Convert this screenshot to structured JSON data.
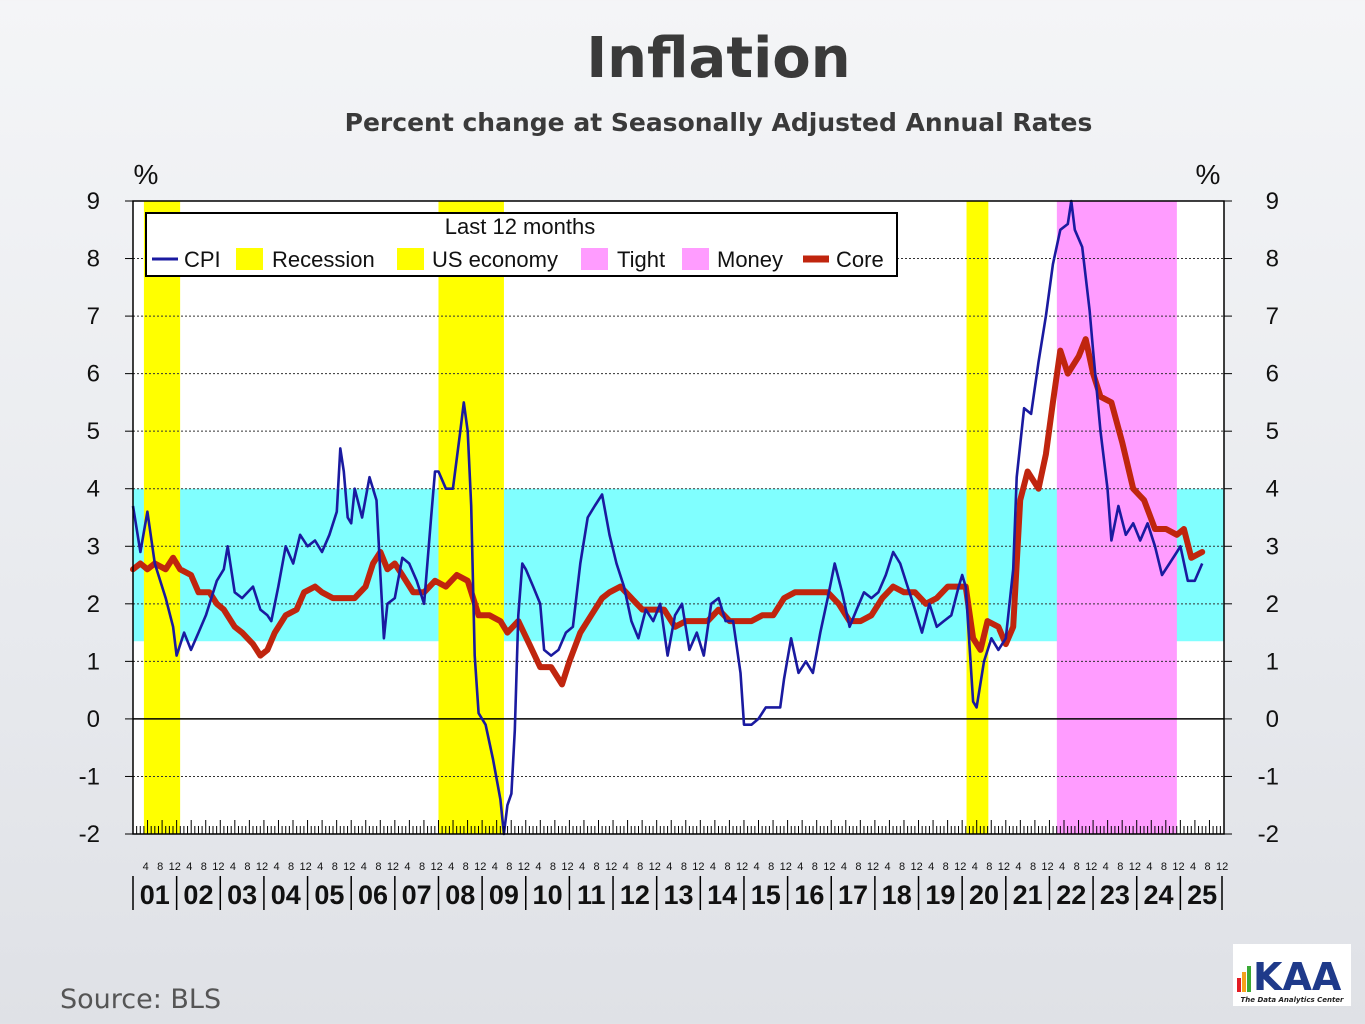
{
  "title": "Inflation",
  "subtitle": "Percent change at Seasonally Adjusted  Annual Rates",
  "source": "Source:  BLS",
  "logo": {
    "text": "KAA",
    "tagline": "The Data Analytics Center"
  },
  "chart_data": {
    "type": "line",
    "y_unit_left": "%",
    "y_unit_right": "%",
    "ylim": [
      -2,
      9
    ],
    "y_ticks": [
      9,
      8,
      7,
      6,
      5,
      4,
      3,
      2,
      1,
      0,
      -1,
      -2
    ],
    "x_range": [
      "2001-01",
      "2025-12"
    ],
    "year_labels": [
      "01",
      "02",
      "03",
      "04",
      "05",
      "06",
      "07",
      "08",
      "09",
      "10",
      "11",
      "12",
      "13",
      "14",
      "15",
      "16",
      "17",
      "18",
      "19",
      "20",
      "21",
      "22",
      "23",
      "24",
      "25"
    ],
    "month_tick_labels": [
      "4",
      "8",
      "12"
    ],
    "grid": "dashed horizontal",
    "legend": {
      "title": "Last 12 months",
      "placement": "top-left",
      "entries": [
        "CPI",
        "Recession",
        "US economy",
        "Tight",
        "Money",
        "Core"
      ]
    },
    "target_band": [
      1.35,
      4.0
    ],
    "recessions": [
      {
        "start": 2001.25,
        "end": 2002.08
      },
      {
        "start": 2008.0,
        "end": 2009.5
      },
      {
        "start": 2020.1,
        "end": 2020.6
      }
    ],
    "tight_money": [
      {
        "start": 2022.17,
        "end": 2024.92
      }
    ],
    "colors": {
      "cpi": "#1a1aa0",
      "core": "#c0250e",
      "recession": "#ffff00",
      "tight_money": "#ff9cff",
      "band": "#80ffff",
      "plot_bg": "#ffffff"
    },
    "series": [
      {
        "name": "CPI",
        "points": [
          [
            2001.0,
            3.7
          ],
          [
            2001.17,
            2.9
          ],
          [
            2001.33,
            3.6
          ],
          [
            2001.5,
            2.7
          ],
          [
            2001.75,
            2.1
          ],
          [
            2001.92,
            1.6
          ],
          [
            2002.0,
            1.1
          ],
          [
            2002.17,
            1.5
          ],
          [
            2002.33,
            1.2
          ],
          [
            2002.5,
            1.5
          ],
          [
            2002.67,
            1.8
          ],
          [
            2002.92,
            2.4
          ],
          [
            2003.08,
            2.6
          ],
          [
            2003.17,
            3.0
          ],
          [
            2003.33,
            2.2
          ],
          [
            2003.5,
            2.1
          ],
          [
            2003.75,
            2.3
          ],
          [
            2003.92,
            1.9
          ],
          [
            2004.08,
            1.8
          ],
          [
            2004.17,
            1.7
          ],
          [
            2004.33,
            2.3
          ],
          [
            2004.5,
            3.0
          ],
          [
            2004.67,
            2.7
          ],
          [
            2004.83,
            3.2
          ],
          [
            2005.0,
            3.0
          ],
          [
            2005.17,
            3.1
          ],
          [
            2005.33,
            2.9
          ],
          [
            2005.5,
            3.2
          ],
          [
            2005.67,
            3.6
          ],
          [
            2005.75,
            4.7
          ],
          [
            2005.83,
            4.3
          ],
          [
            2005.92,
            3.5
          ],
          [
            2006.0,
            3.4
          ],
          [
            2006.08,
            4.0
          ],
          [
            2006.25,
            3.5
          ],
          [
            2006.42,
            4.2
          ],
          [
            2006.58,
            3.8
          ],
          [
            2006.67,
            2.5
          ],
          [
            2006.75,
            1.4
          ],
          [
            2006.83,
            2.0
          ],
          [
            2007.0,
            2.1
          ],
          [
            2007.17,
            2.8
          ],
          [
            2007.33,
            2.7
          ],
          [
            2007.5,
            2.4
          ],
          [
            2007.67,
            2.0
          ],
          [
            2007.83,
            3.5
          ],
          [
            2007.92,
            4.3
          ],
          [
            2008.0,
            4.3
          ],
          [
            2008.17,
            4.0
          ],
          [
            2008.33,
            4.0
          ],
          [
            2008.5,
            5.0
          ],
          [
            2008.58,
            5.5
          ],
          [
            2008.67,
            5.0
          ],
          [
            2008.75,
            3.7
          ],
          [
            2008.83,
            1.1
          ],
          [
            2008.92,
            0.1
          ],
          [
            2009.0,
            0.0
          ],
          [
            2009.08,
            -0.1
          ],
          [
            2009.25,
            -0.7
          ],
          [
            2009.42,
            -1.4
          ],
          [
            2009.5,
            -2.0
          ],
          [
            2009.58,
            -1.5
          ],
          [
            2009.67,
            -1.3
          ],
          [
            2009.75,
            -0.2
          ],
          [
            2009.83,
            1.8
          ],
          [
            2009.92,
            2.7
          ],
          [
            2010.0,
            2.6
          ],
          [
            2010.17,
            2.3
          ],
          [
            2010.33,
            2.0
          ],
          [
            2010.42,
            1.2
          ],
          [
            2010.58,
            1.1
          ],
          [
            2010.75,
            1.2
          ],
          [
            2010.92,
            1.5
          ],
          [
            2011.08,
            1.6
          ],
          [
            2011.25,
            2.7
          ],
          [
            2011.42,
            3.5
          ],
          [
            2011.58,
            3.7
          ],
          [
            2011.75,
            3.9
          ],
          [
            2011.92,
            3.2
          ],
          [
            2012.08,
            2.7
          ],
          [
            2012.25,
            2.3
          ],
          [
            2012.42,
            1.7
          ],
          [
            2012.58,
            1.4
          ],
          [
            2012.75,
            1.9
          ],
          [
            2012.92,
            1.7
          ],
          [
            2013.08,
            2.0
          ],
          [
            2013.25,
            1.1
          ],
          [
            2013.42,
            1.8
          ],
          [
            2013.58,
            2.0
          ],
          [
            2013.75,
            1.2
          ],
          [
            2013.92,
            1.5
          ],
          [
            2014.08,
            1.1
          ],
          [
            2014.25,
            2.0
          ],
          [
            2014.42,
            2.1
          ],
          [
            2014.58,
            1.7
          ],
          [
            2014.75,
            1.7
          ],
          [
            2014.92,
            0.8
          ],
          [
            2015.0,
            -0.1
          ],
          [
            2015.17,
            -0.1
          ],
          [
            2015.33,
            0.0
          ],
          [
            2015.5,
            0.2
          ],
          [
            2015.67,
            0.2
          ],
          [
            2015.83,
            0.2
          ],
          [
            2015.92,
            0.7
          ],
          [
            2016.08,
            1.4
          ],
          [
            2016.25,
            0.8
          ],
          [
            2016.42,
            1.0
          ],
          [
            2016.58,
            0.8
          ],
          [
            2016.75,
            1.5
          ],
          [
            2016.92,
            2.1
          ],
          [
            2017.08,
            2.7
          ],
          [
            2017.25,
            2.2
          ],
          [
            2017.42,
            1.6
          ],
          [
            2017.58,
            1.9
          ],
          [
            2017.75,
            2.2
          ],
          [
            2017.92,
            2.1
          ],
          [
            2018.08,
            2.2
          ],
          [
            2018.25,
            2.5
          ],
          [
            2018.42,
            2.9
          ],
          [
            2018.58,
            2.7
          ],
          [
            2018.75,
            2.3
          ],
          [
            2018.92,
            1.9
          ],
          [
            2019.08,
            1.5
          ],
          [
            2019.25,
            2.0
          ],
          [
            2019.42,
            1.6
          ],
          [
            2019.58,
            1.7
          ],
          [
            2019.75,
            1.8
          ],
          [
            2019.92,
            2.3
          ],
          [
            2020.0,
            2.5
          ],
          [
            2020.08,
            2.3
          ],
          [
            2020.25,
            0.3
          ],
          [
            2020.33,
            0.2
          ],
          [
            2020.5,
            1.0
          ],
          [
            2020.67,
            1.4
          ],
          [
            2020.83,
            1.2
          ],
          [
            2021.0,
            1.4
          ],
          [
            2021.17,
            2.6
          ],
          [
            2021.25,
            4.2
          ],
          [
            2021.42,
            5.4
          ],
          [
            2021.58,
            5.3
          ],
          [
            2021.75,
            6.2
          ],
          [
            2021.92,
            7.0
          ],
          [
            2022.08,
            7.9
          ],
          [
            2022.25,
            8.5
          ],
          [
            2022.42,
            8.6
          ],
          [
            2022.5,
            9.0
          ],
          [
            2022.58,
            8.5
          ],
          [
            2022.75,
            8.2
          ],
          [
            2022.92,
            7.1
          ],
          [
            2023.0,
            6.4
          ],
          [
            2023.17,
            5.0
          ],
          [
            2023.33,
            4.0
          ],
          [
            2023.42,
            3.1
          ],
          [
            2023.58,
            3.7
          ],
          [
            2023.75,
            3.2
          ],
          [
            2023.92,
            3.4
          ],
          [
            2024.08,
            3.1
          ],
          [
            2024.25,
            3.4
          ],
          [
            2024.42,
            3.0
          ],
          [
            2024.58,
            2.5
          ],
          [
            2024.75,
            2.7
          ],
          [
            2024.92,
            2.9
          ],
          [
            2025.0,
            3.0
          ],
          [
            2025.17,
            2.4
          ],
          [
            2025.33,
            2.4
          ],
          [
            2025.5,
            2.7
          ]
        ]
      },
      {
        "name": "Core",
        "points": [
          [
            2001.0,
            2.6
          ],
          [
            2001.17,
            2.7
          ],
          [
            2001.33,
            2.6
          ],
          [
            2001.5,
            2.7
          ],
          [
            2001.75,
            2.6
          ],
          [
            2001.92,
            2.8
          ],
          [
            2002.08,
            2.6
          ],
          [
            2002.33,
            2.5
          ],
          [
            2002.5,
            2.2
          ],
          [
            2002.75,
            2.2
          ],
          [
            2002.92,
            2.0
          ],
          [
            2003.08,
            1.9
          ],
          [
            2003.33,
            1.6
          ],
          [
            2003.5,
            1.5
          ],
          [
            2003.75,
            1.3
          ],
          [
            2003.92,
            1.1
          ],
          [
            2004.08,
            1.2
          ],
          [
            2004.25,
            1.5
          ],
          [
            2004.5,
            1.8
          ],
          [
            2004.75,
            1.9
          ],
          [
            2004.92,
            2.2
          ],
          [
            2005.17,
            2.3
          ],
          [
            2005.33,
            2.2
          ],
          [
            2005.58,
            2.1
          ],
          [
            2005.83,
            2.1
          ],
          [
            2006.08,
            2.1
          ],
          [
            2006.33,
            2.3
          ],
          [
            2006.5,
            2.7
          ],
          [
            2006.67,
            2.9
          ],
          [
            2006.83,
            2.6
          ],
          [
            2007.0,
            2.7
          ],
          [
            2007.17,
            2.5
          ],
          [
            2007.42,
            2.2
          ],
          [
            2007.67,
            2.2
          ],
          [
            2007.92,
            2.4
          ],
          [
            2008.17,
            2.3
          ],
          [
            2008.42,
            2.5
          ],
          [
            2008.67,
            2.4
          ],
          [
            2008.92,
            1.8
          ],
          [
            2009.17,
            1.8
          ],
          [
            2009.42,
            1.7
          ],
          [
            2009.58,
            1.5
          ],
          [
            2009.83,
            1.7
          ],
          [
            2010.08,
            1.3
          ],
          [
            2010.33,
            0.9
          ],
          [
            2010.58,
            0.9
          ],
          [
            2010.83,
            0.6
          ],
          [
            2011.0,
            1.0
          ],
          [
            2011.25,
            1.5
          ],
          [
            2011.5,
            1.8
          ],
          [
            2011.75,
            2.1
          ],
          [
            2011.92,
            2.2
          ],
          [
            2012.17,
            2.3
          ],
          [
            2012.42,
            2.1
          ],
          [
            2012.67,
            1.9
          ],
          [
            2012.92,
            1.9
          ],
          [
            2013.17,
            1.9
          ],
          [
            2013.42,
            1.6
          ],
          [
            2013.67,
            1.7
          ],
          [
            2013.92,
            1.7
          ],
          [
            2014.17,
            1.7
          ],
          [
            2014.42,
            1.9
          ],
          [
            2014.67,
            1.7
          ],
          [
            2014.92,
            1.7
          ],
          [
            2015.17,
            1.7
          ],
          [
            2015.42,
            1.8
          ],
          [
            2015.67,
            1.8
          ],
          [
            2015.92,
            2.1
          ],
          [
            2016.17,
            2.2
          ],
          [
            2016.42,
            2.2
          ],
          [
            2016.67,
            2.2
          ],
          [
            2016.92,
            2.2
          ],
          [
            2017.17,
            2.0
          ],
          [
            2017.42,
            1.7
          ],
          [
            2017.67,
            1.7
          ],
          [
            2017.92,
            1.8
          ],
          [
            2018.17,
            2.1
          ],
          [
            2018.42,
            2.3
          ],
          [
            2018.67,
            2.2
          ],
          [
            2018.92,
            2.2
          ],
          [
            2019.17,
            2.0
          ],
          [
            2019.42,
            2.1
          ],
          [
            2019.67,
            2.3
          ],
          [
            2019.92,
            2.3
          ],
          [
            2020.08,
            2.3
          ],
          [
            2020.25,
            1.4
          ],
          [
            2020.42,
            1.2
          ],
          [
            2020.58,
            1.7
          ],
          [
            2020.83,
            1.6
          ],
          [
            2021.0,
            1.3
          ],
          [
            2021.17,
            1.6
          ],
          [
            2021.33,
            3.8
          ],
          [
            2021.5,
            4.3
          ],
          [
            2021.75,
            4.0
          ],
          [
            2021.92,
            4.6
          ],
          [
            2022.08,
            5.5
          ],
          [
            2022.25,
            6.4
          ],
          [
            2022.42,
            6.0
          ],
          [
            2022.67,
            6.3
          ],
          [
            2022.83,
            6.6
          ],
          [
            2023.0,
            6.0
          ],
          [
            2023.17,
            5.6
          ],
          [
            2023.42,
            5.5
          ],
          [
            2023.67,
            4.8
          ],
          [
            2023.92,
            4.0
          ],
          [
            2024.17,
            3.8
          ],
          [
            2024.42,
            3.3
          ],
          [
            2024.67,
            3.3
          ],
          [
            2024.92,
            3.2
          ],
          [
            2025.08,
            3.3
          ],
          [
            2025.25,
            2.8
          ],
          [
            2025.5,
            2.9
          ]
        ]
      }
    ]
  }
}
